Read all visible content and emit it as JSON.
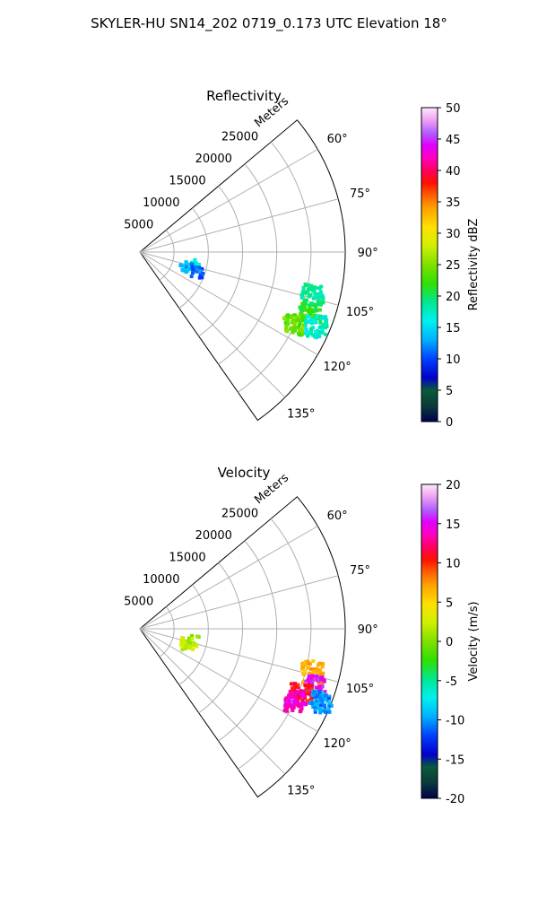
{
  "figure": {
    "suptitle": "SKYLER-HU  SN14_202  0719_0.173 UTC Elevation 18°"
  },
  "chart_data": [
    {
      "type": "heatmap",
      "projection": "polar-sector",
      "title": "Reflectivity",
      "radial_label": "Meters",
      "radial_ticks": [
        "5000",
        "10000",
        "15000",
        "20000",
        "25000"
      ],
      "rlim": [
        0,
        30000
      ],
      "angle_ticks": [
        "60°",
        "75°",
        "90°",
        "105°",
        "120°",
        "135°"
      ],
      "angle_range_deg": [
        50,
        145
      ],
      "grid": true,
      "colorbar": {
        "label": "Reflectivity dBZ",
        "ticks": [
          "0",
          "5",
          "10",
          "15",
          "20",
          "25",
          "30",
          "35",
          "40",
          "45",
          "50"
        ],
        "range": [
          0,
          50
        ]
      },
      "echoes": [
        {
          "azimuth_deg": 104,
          "range_m": 8000,
          "value": 17
        },
        {
          "azimuth_deg": 108,
          "range_m": 7200,
          "value": 13
        },
        {
          "azimuth_deg": 110,
          "range_m": 9000,
          "value": 11
        },
        {
          "azimuth_deg": 104,
          "range_m": 26000,
          "value": 19
        },
        {
          "azimuth_deg": 110,
          "range_m": 26500,
          "value": 21
        },
        {
          "azimuth_deg": 115,
          "range_m": 25000,
          "value": 24
        },
        {
          "azimuth_deg": 113,
          "range_m": 28000,
          "value": 17
        }
      ]
    },
    {
      "type": "heatmap",
      "projection": "polar-sector",
      "title": "Velocity",
      "radial_label": "Meters",
      "radial_ticks": [
        "5000",
        "10000",
        "15000",
        "20000",
        "25000"
      ],
      "rlim": [
        0,
        30000
      ],
      "angle_ticks": [
        "60°",
        "75°",
        "90°",
        "105°",
        "120°",
        "135°"
      ],
      "angle_range_deg": [
        50,
        145
      ],
      "grid": true,
      "colorbar": {
        "label": "Velocity (m/s)",
        "ticks": [
          "-20",
          "-15",
          "-10",
          "-5",
          "0",
          "5",
          "10",
          "15",
          "20"
        ],
        "range": [
          -20,
          20
        ]
      },
      "echoes": [
        {
          "azimuth_deg": 104,
          "range_m": 8000,
          "value": 1
        },
        {
          "azimuth_deg": 108,
          "range_m": 7200,
          "value": 2
        },
        {
          "azimuth_deg": 104,
          "range_m": 26000,
          "value": 7
        },
        {
          "azimuth_deg": 108,
          "range_m": 27000,
          "value": 15
        },
        {
          "azimuth_deg": 112,
          "range_m": 25500,
          "value": 11
        },
        {
          "azimuth_deg": 115,
          "range_m": 25000,
          "value": 14
        },
        {
          "azimuth_deg": 112,
          "range_m": 28500,
          "value": -10
        }
      ]
    }
  ]
}
